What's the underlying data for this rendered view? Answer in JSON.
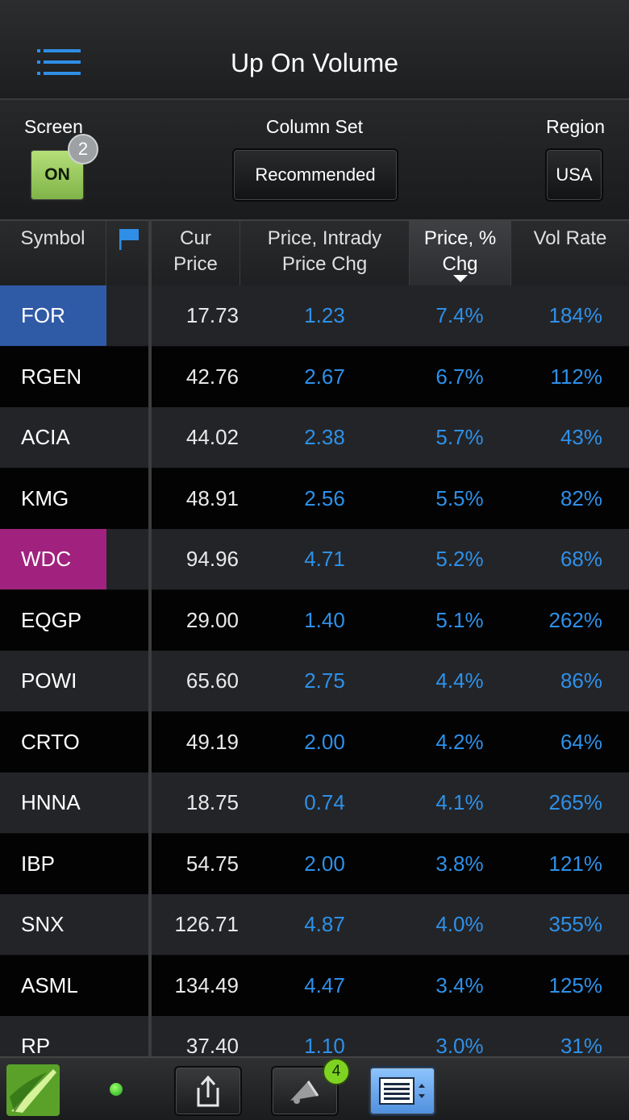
{
  "header": {
    "title": "Up On Volume"
  },
  "controls": {
    "screen": {
      "label": "Screen",
      "value": "ON",
      "badge": "2"
    },
    "column_set": {
      "label": "Column Set",
      "value": "Recommended"
    },
    "region": {
      "label": "Region",
      "value": "USA"
    }
  },
  "table": {
    "columns": [
      "Symbol",
      "Cur Price",
      "Price, Intrady Price Chg",
      "Price, % Chg",
      "Vol Rate"
    ],
    "rows": [
      {
        "symbol": "FOR",
        "price": "17.73",
        "chg": "1.23",
        "pct": "7.4%",
        "vol": "184%"
      },
      {
        "symbol": "RGEN",
        "price": "42.76",
        "chg": "2.67",
        "pct": "6.7%",
        "vol": "112%"
      },
      {
        "symbol": "ACIA",
        "price": "44.02",
        "chg": "2.38",
        "pct": "5.7%",
        "vol": "43%"
      },
      {
        "symbol": "KMG",
        "price": "48.91",
        "chg": "2.56",
        "pct": "5.5%",
        "vol": "82%"
      },
      {
        "symbol": "WDC",
        "price": "94.96",
        "chg": "4.71",
        "pct": "5.2%",
        "vol": "68%"
      },
      {
        "symbol": "EQGP",
        "price": "29.00",
        "chg": "1.40",
        "pct": "5.1%",
        "vol": "262%"
      },
      {
        "symbol": "POWI",
        "price": "65.60",
        "chg": "2.75",
        "pct": "4.4%",
        "vol": "86%"
      },
      {
        "symbol": "CRTO",
        "price": "49.19",
        "chg": "2.00",
        "pct": "4.2%",
        "vol": "64%"
      },
      {
        "symbol": "HNNA",
        "price": "18.75",
        "chg": "0.74",
        "pct": "4.1%",
        "vol": "265%"
      },
      {
        "symbol": "IBP",
        "price": "54.75",
        "chg": "2.00",
        "pct": "3.8%",
        "vol": "121%"
      },
      {
        "symbol": "SNX",
        "price": "126.71",
        "chg": "4.87",
        "pct": "4.0%",
        "vol": "355%"
      },
      {
        "symbol": "ASML",
        "price": "134.49",
        "chg": "4.47",
        "pct": "3.4%",
        "vol": "125%"
      },
      {
        "symbol": "RP",
        "price": "37.40",
        "chg": "1.10",
        "pct": "3.0%",
        "vol": "31%"
      }
    ]
  },
  "footer": {
    "alerts_badge": "4"
  },
  "colors": {
    "accent_blue": "#2e90e8",
    "on_green": "#8fc255",
    "highlight_blue": "#2f5aa6",
    "highlight_magenta": "#a0227e"
  },
  "icons": [
    "menu-icon",
    "flag-icon",
    "share-icon",
    "megaphone-icon",
    "list-view-icon",
    "app-logo-icon"
  ]
}
